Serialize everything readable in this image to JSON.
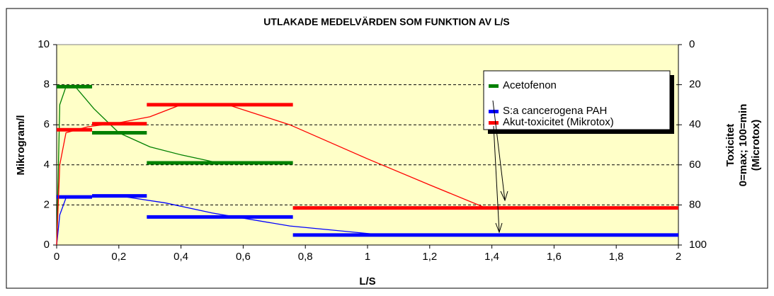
{
  "chart_data": {
    "type": "step-line",
    "title": "UTLAKADE MEDELVÄRDEN SOM FUNKTION AV L/S",
    "xlabel": "L/S",
    "ylabel": "Mikrogram/l",
    "y2label": [
      "Toxicitet",
      "0=max; 100=min",
      "(Microtox)"
    ],
    "xlim": [
      0,
      2
    ],
    "xticks": [
      0,
      {
        "value": 0.2,
        "label": "0,2"
      },
      {
        "value": 0.4,
        "label": "0,4"
      },
      {
        "value": 0.6,
        "label": "0,6"
      },
      {
        "value": 0.8,
        "label": "0,8"
      },
      1,
      {
        "value": 1.2,
        "label": "1,2"
      },
      {
        "value": 1.4,
        "label": "1,4"
      },
      {
        "value": 1.6,
        "label": "1,6"
      },
      {
        "value": 1.8,
        "label": "1,8"
      },
      2
    ],
    "ylim": [
      0,
      10
    ],
    "yticks": [
      0,
      2,
      4,
      6,
      8,
      10
    ],
    "y2lim": [
      100,
      0
    ],
    "y2ticks": [
      0,
      20,
      40,
      60,
      80,
      100
    ],
    "grid": true,
    "legend": "upper right",
    "series": [
      {
        "name": "Acetofenon",
        "color": "#008000",
        "x": [
          0,
          0.01,
          0.03,
          0.06,
          0.12,
          0.2,
          0.3,
          0.4,
          0.52
        ],
        "values": [
          0,
          7,
          7.9,
          7.9,
          6.8,
          5.6,
          4.9,
          4.5,
          4.1
        ],
        "step_edges": [
          0,
          0.114,
          0.29,
          0.76
        ],
        "step_values": [
          7.9,
          5.6,
          4.1
        ]
      },
      {
        "name": "S:a cancerogena PAH",
        "color": "#0000ff",
        "x": [
          0,
          0.01,
          0.03,
          0.1,
          0.2,
          0.35,
          0.5,
          0.75,
          1.05
        ],
        "values": [
          0,
          1.5,
          2.35,
          2.4,
          2.45,
          2.1,
          1.6,
          0.95,
          0.5
        ],
        "step_edges": [
          0,
          0.114,
          0.29,
          0.76,
          2
        ],
        "step_values": [
          2.4,
          2.45,
          1.4,
          0.5
        ]
      },
      {
        "name": "Akut-toxicitet (Mikrotox)",
        "color": "#ff0000",
        "axis": "y2",
        "x": [
          0,
          0.01,
          0.03,
          0.1,
          0.2,
          0.3,
          0.4,
          0.55,
          0.75,
          1.0,
          1.2,
          1.38
        ],
        "values": [
          100,
          60,
          44,
          41,
          39,
          36,
          30,
          30,
          40,
          57,
          70,
          81.5
        ],
        "step_edges": [
          0,
          0.114,
          0.29,
          0.76,
          2
        ],
        "step_values": [
          42.5,
          39.5,
          30,
          81.5
        ]
      }
    ]
  }
}
